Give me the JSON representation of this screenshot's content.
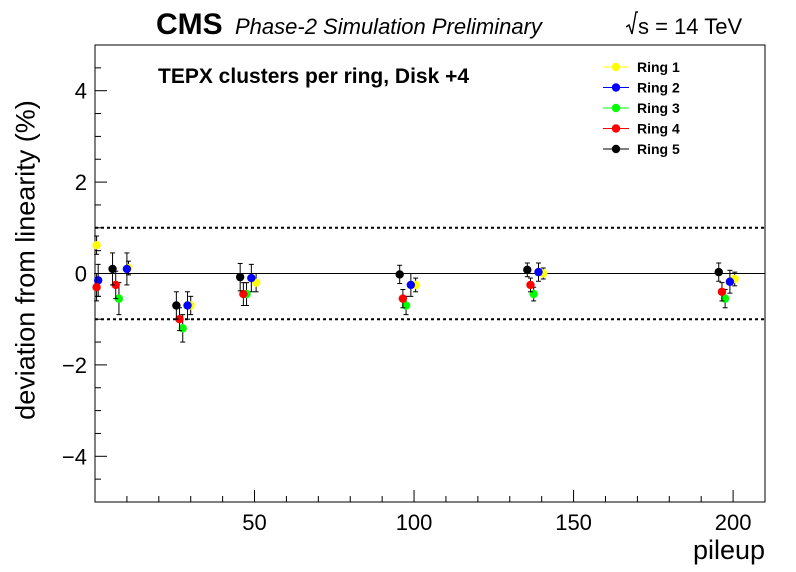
{
  "header": {
    "experiment": "CMS",
    "subtitle": "Phase-2 Simulation Preliminary",
    "energy": "s = 14 TeV"
  },
  "chart_data": {
    "type": "scatter",
    "title": "TEPX clusters per ring, Disk +4",
    "xlabel": "pileup",
    "ylabel": "deviation from linearity (%)",
    "xlim": [
      0,
      210
    ],
    "ylim": [
      -5,
      5
    ],
    "x_ticks": [
      50,
      100,
      150,
      200
    ],
    "y_ticks": [
      -4,
      -2,
      0,
      2,
      4
    ],
    "reference_lines": [
      {
        "y": 0,
        "style": "solid"
      },
      {
        "y": 1,
        "style": "dotted"
      },
      {
        "y": -1,
        "style": "dotted"
      }
    ],
    "legend_position": "top-right",
    "series": [
      {
        "name": "Ring 1",
        "color": "#ffff00",
        "points": [
          {
            "x": 0.5,
            "y": 0.62,
            "err": 0.2
          },
          {
            "x": 10.5,
            "y": 0.12,
            "err": 0.15
          },
          {
            "x": 30,
            "y": -0.7,
            "err": 0.2
          },
          {
            "x": 50.5,
            "y": -0.2,
            "err": 0.2
          },
          {
            "x": 100.5,
            "y": -0.25,
            "err": 0.15
          },
          {
            "x": 140.5,
            "y": 0.0,
            "err": 0.12
          },
          {
            "x": 200.5,
            "y": -0.12,
            "err": 0.15
          }
        ]
      },
      {
        "name": "Ring 2",
        "color": "#0000ff",
        "points": [
          {
            "x": 1,
            "y": -0.15,
            "err": 0.35
          },
          {
            "x": 10,
            "y": 0.1,
            "err": 0.35
          },
          {
            "x": 29,
            "y": -0.7,
            "err": 0.3
          },
          {
            "x": 49,
            "y": -0.1,
            "err": 0.3
          },
          {
            "x": 99,
            "y": -0.25,
            "err": 0.25
          },
          {
            "x": 139,
            "y": 0.03,
            "err": 0.2
          },
          {
            "x": 199,
            "y": -0.18,
            "err": 0.25
          }
        ]
      },
      {
        "name": "Ring 3",
        "color": "#00ff00",
        "points": [
          {
            "x": 7.5,
            "y": -0.55,
            "err": 0.35
          },
          {
            "x": 27.5,
            "y": -1.2,
            "err": 0.3
          },
          {
            "x": 47.5,
            "y": -0.45,
            "err": 0.25
          },
          {
            "x": 97.5,
            "y": -0.7,
            "err": 0.2
          },
          {
            "x": 137.5,
            "y": -0.45,
            "err": 0.15
          },
          {
            "x": 197.5,
            "y": -0.55,
            "err": 0.2
          }
        ]
      },
      {
        "name": "Ring 4",
        "color": "#ff0000",
        "points": [
          {
            "x": 0.5,
            "y": -0.3,
            "err": 0.3
          },
          {
            "x": 6.5,
            "y": -0.25,
            "err": 0.3
          },
          {
            "x": 26.5,
            "y": -1.0,
            "err": 0.25
          },
          {
            "x": 46.5,
            "y": -0.45,
            "err": 0.25
          },
          {
            "x": 96.5,
            "y": -0.55,
            "err": 0.2
          },
          {
            "x": 136.5,
            "y": -0.25,
            "err": 0.15
          },
          {
            "x": 196.5,
            "y": -0.4,
            "err": 0.2
          }
        ]
      },
      {
        "name": "Ring 5",
        "color": "#000000",
        "points": [
          {
            "x": 5.5,
            "y": 0.1,
            "err": 0.35
          },
          {
            "x": 25.5,
            "y": -0.7,
            "err": 0.3
          },
          {
            "x": 45.5,
            "y": -0.08,
            "err": 0.3
          },
          {
            "x": 95.5,
            "y": -0.02,
            "err": 0.2
          },
          {
            "x": 135.5,
            "y": 0.08,
            "err": 0.15
          },
          {
            "x": 195.5,
            "y": 0.03,
            "err": 0.2
          }
        ]
      }
    ]
  }
}
